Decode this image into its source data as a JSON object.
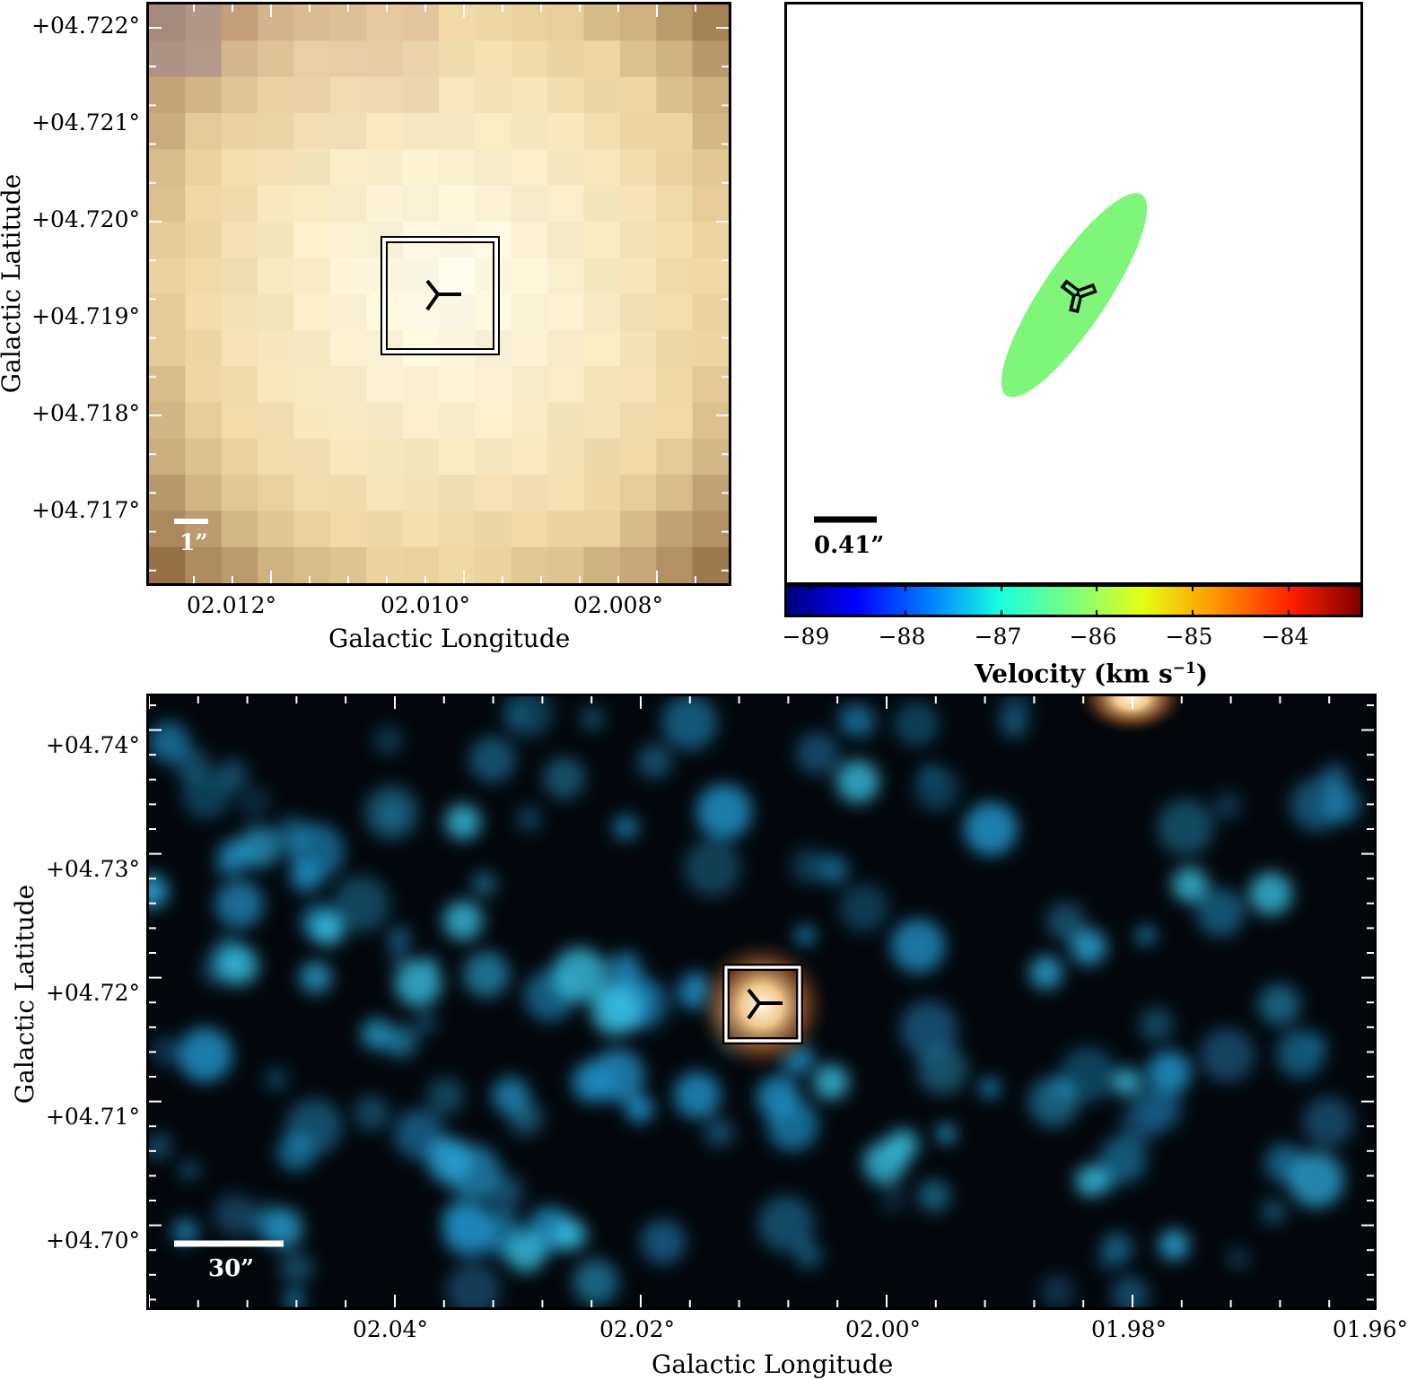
{
  "panel_a": {
    "y_ticks": [
      "+04.722°",
      "+04.721°",
      "+04.720°",
      "+04.719°",
      "+04.718°",
      "+04.717°"
    ],
    "x_ticks": [
      "02.012°",
      "02.010°",
      "02.008°"
    ],
    "x_title": "Galactic Longitude",
    "y_title": "Galactic Latitude",
    "scale_label": "1”",
    "marker_icon": "three-pronged-star-icon",
    "box_icon": "double-square-box-icon"
  },
  "panel_b": {
    "scale_label": "0.41”",
    "ellipse_color": "#7ff57a",
    "marker_icon": "three-pronged-star-icon",
    "colorbar_ticks": [
      "−89",
      "−88",
      "−87",
      "−86",
      "−85",
      "−84"
    ],
    "colorbar_title": "Velocity (km s",
    "colorbar_title_sup": "−1",
    "colorbar_title_end": ")",
    "colorbar_range": [
      -89.3,
      -83.3
    ]
  },
  "panel_c": {
    "y_ticks": [
      "+04.74°",
      "+04.73°",
      "+04.72°",
      "+04.71°",
      "+04.70°"
    ],
    "x_ticks": [
      "02.04°",
      "02.02°",
      "02.00°",
      "01.98°",
      "01.96°"
    ],
    "x_title": "Galactic Longitude",
    "y_title": "Galactic Latitude",
    "scale_label": "30”",
    "marker_icon": "three-pronged-star-icon",
    "box_icon": "double-square-box-icon"
  }
}
